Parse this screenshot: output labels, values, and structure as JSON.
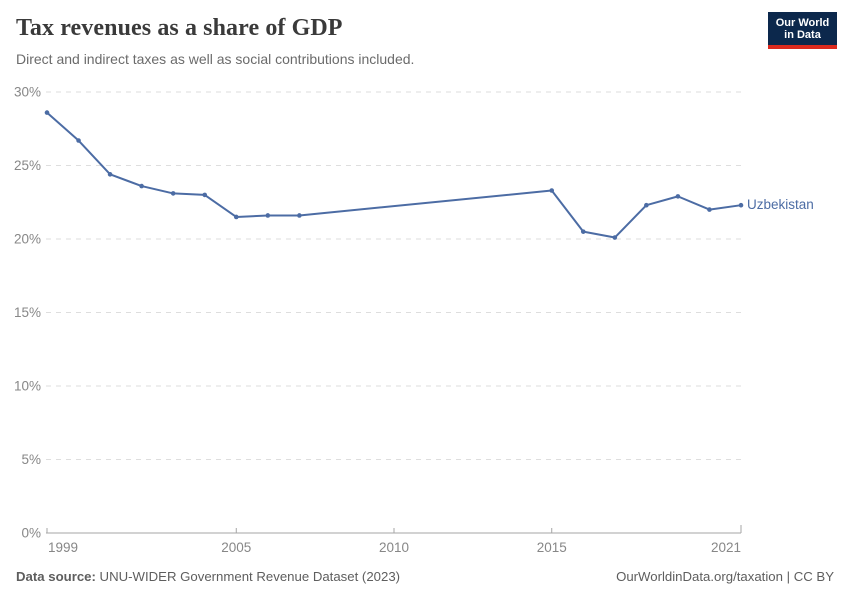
{
  "header": {
    "title": "Tax revenues as a share of GDP",
    "subtitle": "Direct and indirect taxes as well as social contributions included."
  },
  "logo": {
    "line1": "Our World",
    "line2": "in Data",
    "bg_color": "#0C284C",
    "bar_color": "#DC2A1E"
  },
  "footer": {
    "source_label": "Data source:",
    "source_text": " UNU-WIDER Government Revenue Dataset (2023)",
    "credit": "OurWorldinData.org/taxation | CC BY"
  },
  "chart_data": {
    "type": "line",
    "title": "Tax revenues as a share of GDP",
    "subtitle": "Direct and indirect taxes as well as social contributions included.",
    "xlabel": "",
    "ylabel": "",
    "x_range": [
      1999,
      2021
    ],
    "y_range": [
      0,
      30
    ],
    "x_ticks": [
      1999,
      2005,
      2010,
      2015,
      2021
    ],
    "y_ticks": [
      0,
      5,
      10,
      15,
      20,
      25,
      30
    ],
    "y_tick_suffix": "%",
    "grid": "horizontal-dashed",
    "legend_position": "inline-end-of-line",
    "colors": {
      "grid": "#dedede",
      "axis": "#a5a5a5",
      "tick_label": "#878787"
    },
    "series": [
      {
        "name": "Uzbekistan",
        "color": "#4C6CA4",
        "points": [
          {
            "year": 1999,
            "value": 28.6
          },
          {
            "year": 2000,
            "value": 26.7
          },
          {
            "year": 2001,
            "value": 24.4
          },
          {
            "year": 2002,
            "value": 23.6
          },
          {
            "year": 2003,
            "value": 23.1
          },
          {
            "year": 2004,
            "value": 23.0
          },
          {
            "year": 2005,
            "value": 21.5
          },
          {
            "year": 2006,
            "value": 21.6
          },
          {
            "year": 2007,
            "value": 21.6
          },
          {
            "year": 2015,
            "value": 23.3
          },
          {
            "year": 2016,
            "value": 20.5
          },
          {
            "year": 2017,
            "value": 20.1
          },
          {
            "year": 2018,
            "value": 22.3
          },
          {
            "year": 2019,
            "value": 22.9
          },
          {
            "year": 2020,
            "value": 22.0
          },
          {
            "year": 2021,
            "value": 22.3
          }
        ]
      }
    ]
  }
}
